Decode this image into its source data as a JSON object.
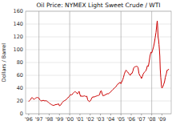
{
  "chart_data": {
    "type": "line",
    "title": "Oil Price: NYMEX Light Sweet Crude / WTI",
    "y_label": "Dollars / Barrel",
    "color": "#cc0000",
    "grid": true,
    "xlim": [
      1995.7,
      2009.9
    ],
    "xticks": [
      {
        "value": 1996,
        "label": "'96"
      },
      {
        "value": 1997,
        "label": "'97"
      },
      {
        "value": 1998,
        "label": "'98"
      },
      {
        "value": 1999,
        "label": "'99"
      },
      {
        "value": 2000,
        "label": "'00"
      },
      {
        "value": 2001,
        "label": "'01"
      },
      {
        "value": 2002,
        "label": "'02"
      },
      {
        "value": 2003,
        "label": "'03"
      },
      {
        "value": 2004,
        "label": "'04"
      },
      {
        "value": 2005,
        "label": "'05"
      },
      {
        "value": 2006,
        "label": "'06"
      },
      {
        "value": 2007,
        "label": "'07"
      },
      {
        "value": 2008,
        "label": "'08"
      },
      {
        "value": 2009,
        "label": "'09"
      }
    ],
    "ylim": [
      0,
      160
    ],
    "yticks": [
      0,
      20,
      40,
      60,
      80,
      100,
      120,
      140,
      160
    ],
    "vlines": [
      1997.0,
      2000.0,
      2005.0,
      2008.0
    ],
    "x": [
      1996.0,
      1996.08,
      1996.17,
      1996.25,
      1996.33,
      1996.42,
      1996.5,
      1996.58,
      1996.67,
      1996.75,
      1996.83,
      1996.92,
      1997.0,
      1997.08,
      1997.17,
      1997.25,
      1997.33,
      1997.42,
      1997.5,
      1997.58,
      1997.67,
      1997.75,
      1997.83,
      1997.92,
      1998.0,
      1998.08,
      1998.17,
      1998.25,
      1998.33,
      1998.42,
      1998.5,
      1998.58,
      1998.67,
      1998.75,
      1998.83,
      1998.92,
      1999.0,
      1999.08,
      1999.17,
      1999.25,
      1999.33,
      1999.42,
      1999.5,
      1999.58,
      1999.67,
      1999.75,
      1999.83,
      1999.92,
      2000.0,
      2000.08,
      2000.17,
      2000.25,
      2000.33,
      2000.42,
      2000.5,
      2000.58,
      2000.67,
      2000.75,
      2000.83,
      2000.92,
      2001.0,
      2001.08,
      2001.17,
      2001.25,
      2001.33,
      2001.42,
      2001.5,
      2001.58,
      2001.67,
      2001.75,
      2001.83,
      2001.92,
      2002.0,
      2002.08,
      2002.17,
      2002.25,
      2002.33,
      2002.42,
      2002.5,
      2002.58,
      2002.67,
      2002.75,
      2002.83,
      2002.92,
      2003.0,
      2003.08,
      2003.17,
      2003.25,
      2003.33,
      2003.42,
      2003.5,
      2003.58,
      2003.67,
      2003.75,
      2003.83,
      2003.92,
      2004.0,
      2004.08,
      2004.17,
      2004.25,
      2004.33,
      2004.42,
      2004.5,
      2004.58,
      2004.67,
      2004.75,
      2004.83,
      2004.92,
      2005.0,
      2005.08,
      2005.17,
      2005.25,
      2005.33,
      2005.42,
      2005.5,
      2005.58,
      2005.67,
      2005.75,
      2005.83,
      2005.92,
      2006.0,
      2006.08,
      2006.17,
      2006.25,
      2006.33,
      2006.42,
      2006.5,
      2006.58,
      2006.67,
      2006.75,
      2006.83,
      2006.92,
      2007.0,
      2007.08,
      2007.17,
      2007.25,
      2007.33,
      2007.42,
      2007.5,
      2007.58,
      2007.67,
      2007.75,
      2007.83,
      2007.92,
      2008.0,
      2008.08,
      2008.17,
      2008.25,
      2008.33,
      2008.42,
      2008.5,
      2008.54,
      2008.58,
      2008.62,
      2008.67,
      2008.71,
      2008.75,
      2008.79,
      2008.83,
      2008.88,
      2008.92,
      2008.96,
      2009.0,
      2009.08,
      2009.17,
      2009.25,
      2009.33,
      2009.42,
      2009.5,
      2009.58,
      2009.67
    ],
    "values": [
      19.0,
      20.5,
      22.0,
      24.0,
      25.5,
      24.0,
      22.5,
      23.0,
      24.5,
      25.0,
      25.5,
      25.0,
      24.5,
      22.0,
      20.5,
      20.0,
      20.5,
      21.0,
      20.5,
      20.0,
      20.5,
      20.0,
      19.0,
      18.0,
      17.0,
      15.5,
      15.0,
      14.0,
      13.5,
      13.0,
      13.5,
      14.0,
      14.5,
      14.5,
      15.0,
      15.5,
      12.5,
      13.0,
      15.0,
      17.0,
      18.5,
      20.0,
      20.5,
      21.0,
      22.5,
      24.0,
      25.0,
      26.5,
      28.0,
      30.0,
      29.5,
      30.0,
      32.0,
      33.5,
      34.5,
      34.0,
      33.0,
      31.0,
      33.0,
      35.0,
      30.0,
      27.0,
      28.0,
      27.0,
      27.5,
      28.0,
      27.5,
      27.0,
      27.5,
      22.0,
      20.0,
      19.0,
      20.0,
      22.0,
      25.0,
      26.5,
      26.0,
      26.5,
      27.0,
      27.5,
      28.0,
      28.5,
      28.5,
      30.0,
      35.0,
      36.0,
      31.0,
      28.0,
      28.5,
      29.0,
      30.0,
      30.5,
      31.5,
      31.0,
      32.0,
      33.0,
      34.0,
      36.0,
      37.0,
      38.0,
      40.0,
      41.0,
      42.0,
      44.0,
      46.0,
      47.0,
      48.0,
      49.0,
      47.0,
      50.0,
      53.0,
      57.0,
      62.0,
      66.0,
      68.0,
      66.0,
      65.0,
      63.0,
      61.0,
      60.0,
      63.0,
      63.0,
      67.0,
      72.0,
      73.0,
      73.5,
      74.0,
      74.0,
      72.0,
      63.0,
      60.0,
      58.0,
      55.0,
      58.0,
      62.0,
      64.0,
      65.5,
      67.0,
      70.0,
      75.0,
      74.0,
      81.0,
      90.0,
      96.0,
      95.0,
      99.0,
      104.0,
      110.0,
      118.0,
      127.0,
      140.0,
      145.0,
      135.0,
      120.0,
      115.0,
      108.0,
      100.0,
      90.0,
      70.0,
      57.0,
      50.0,
      42.0,
      40.0,
      42.0,
      46.0,
      50.0,
      57.0,
      62.0,
      68.0,
      68.0,
      70.0
    ]
  }
}
